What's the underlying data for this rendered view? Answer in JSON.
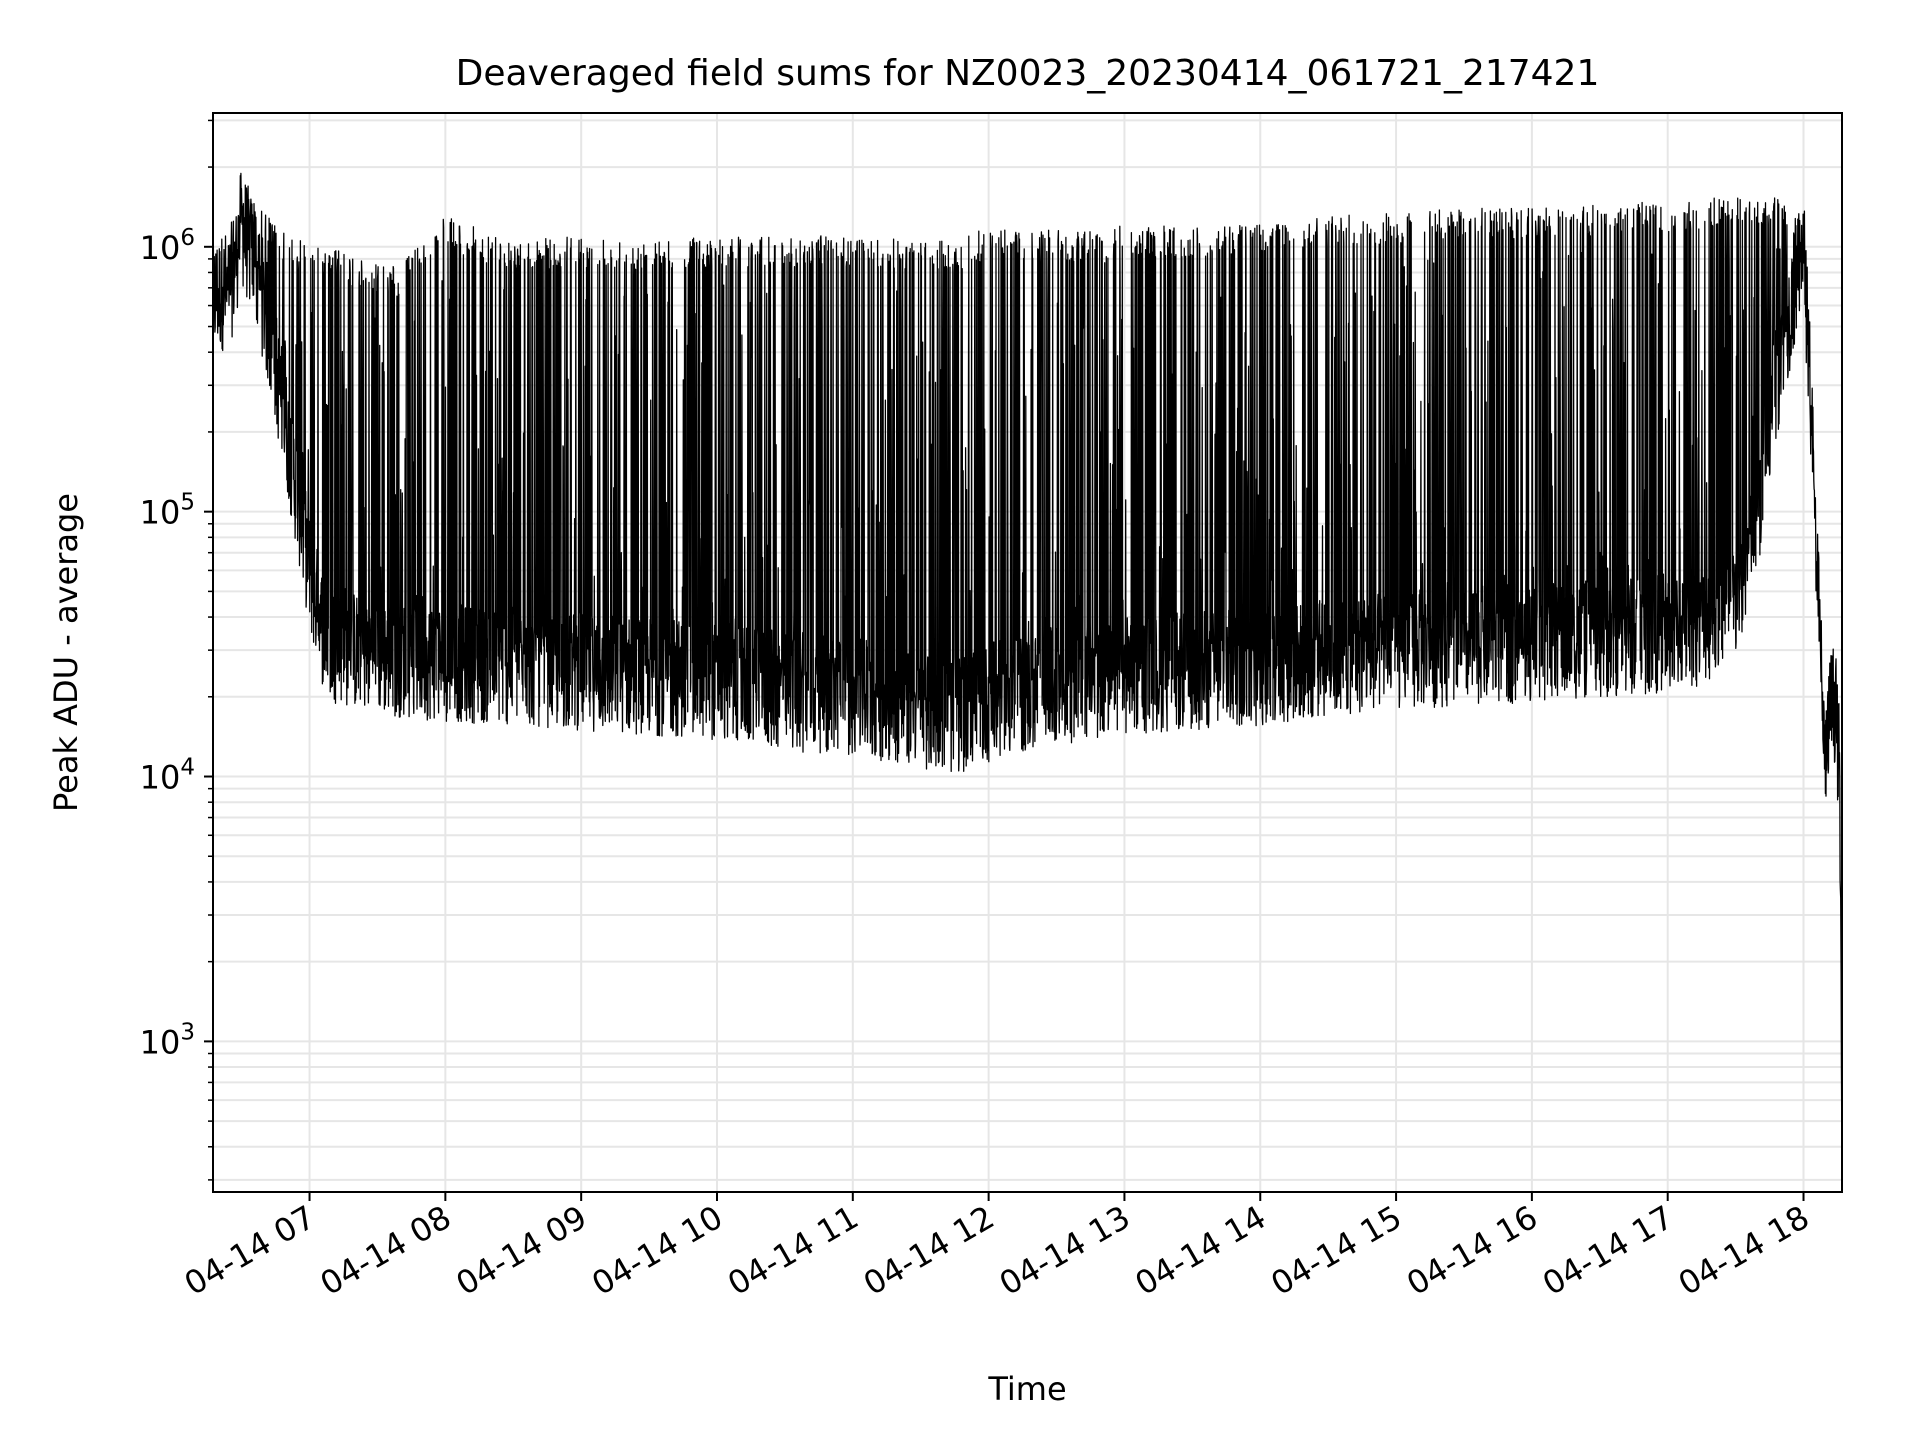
{
  "chart_data": {
    "type": "line",
    "title": "Deaveraged field sums for NZ0023_20230414_061721_217421",
    "xlabel": "Time",
    "ylabel": "Peak ADU - average",
    "yscale": "log",
    "ylim": [
      270,
      3200000
    ],
    "xlim": [
      "2023-04-14 06:17:21",
      "2023-04-14 18:17:00"
    ],
    "grid": true,
    "legend": "none",
    "line_color": "#000000",
    "grid_color": "#e6e6e6",
    "x_ticks": [
      "04-14 07",
      "04-14 08",
      "04-14 09",
      "04-14 10",
      "04-14 11",
      "04-14 12",
      "04-14 13",
      "04-14 14",
      "04-14 15",
      "04-14 16",
      "04-14 17",
      "04-14 18"
    ],
    "y_ticks": [
      {
        "value": 1000,
        "base": "10",
        "exp": "3"
      },
      {
        "value": 10000,
        "base": "10",
        "exp": "4"
      },
      {
        "value": 100000,
        "base": "10",
        "exp": "5"
      },
      {
        "value": 1000000,
        "base": "10",
        "exp": "6"
      }
    ],
    "series": [
      {
        "label_note": "",
        "x": [
          "2023-04-14 06:17:21",
          "2023-04-14 06:25:00",
          "2023-04-14 06:30:00",
          "2023-04-14 06:35:00",
          "2023-04-14 06:40:00",
          "2023-04-14 06:45:00",
          "2023-04-14 06:50:00",
          "2023-04-14 06:55:00",
          "2023-04-14 07:00:00",
          "2023-04-14 07:05:00",
          "2023-04-14 07:10:00",
          "2023-04-14 07:20:00",
          "2023-04-14 07:40:00",
          "2023-04-14 08:00:00",
          "2023-04-14 08:30:00",
          "2023-04-14 09:00:00",
          "2023-04-14 09:30:00",
          "2023-04-14 10:00:00",
          "2023-04-14 10:30:00",
          "2023-04-14 11:00:00",
          "2023-04-14 11:30:00",
          "2023-04-14 11:45:00",
          "2023-04-14 12:00:00",
          "2023-04-14 12:30:00",
          "2023-04-14 13:00:00",
          "2023-04-14 13:30:00",
          "2023-04-14 14:00:00",
          "2023-04-14 14:30:00",
          "2023-04-14 15:00:00",
          "2023-04-14 15:30:00",
          "2023-04-14 16:00:00",
          "2023-04-14 16:30:00",
          "2023-04-14 17:00:00",
          "2023-04-14 17:15:00",
          "2023-04-14 17:30:00",
          "2023-04-14 17:40:00",
          "2023-04-14 17:50:00",
          "2023-04-14 18:00:00",
          "2023-04-14 18:03:00",
          "2023-04-14 18:06:00",
          "2023-04-14 18:08:00",
          "2023-04-14 18:09:00",
          "2023-04-14 18:10:00",
          "2023-04-14 18:12:00",
          "2023-04-14 18:14:00",
          "2023-04-14 18:16:00",
          "2023-04-14 18:17:00"
        ],
        "baseline": [
          650000,
          700000,
          1200000,
          900000,
          600000,
          350000,
          200000,
          110000,
          60000,
          38000,
          32000,
          30000,
          28000,
          27000,
          26000,
          25000,
          24000,
          23000,
          21000,
          20000,
          18000,
          17000,
          19000,
          22000,
          24000,
          25000,
          26000,
          28000,
          30000,
          31000,
          32000,
          33000,
          35000,
          37000,
          45000,
          100000,
          400000,
          1000000,
          300000,
          60000,
          25000,
          13000,
          11000,
          19000,
          19000,
          10000,
          400
        ],
        "peaks": [
          750000,
          780000,
          1700000,
          1500000,
          1400000,
          1200000,
          1100000,
          1100000,
          1100000,
          1000000,
          1000000,
          900000,
          850000,
          1300000,
          1050000,
          1100000,
          1050000,
          1100000,
          1100000,
          1100000,
          1050000,
          1050000,
          1200000,
          1150000,
          1200000,
          1200000,
          1250000,
          1300000,
          1350000,
          1400000,
          1400000,
          1450000,
          1500000,
          1500000,
          1600000,
          1600000,
          1600000,
          1200000,
          300000,
          60000,
          25000,
          13000,
          11000,
          20000,
          20000,
          10000,
          400
        ]
      }
    ]
  }
}
